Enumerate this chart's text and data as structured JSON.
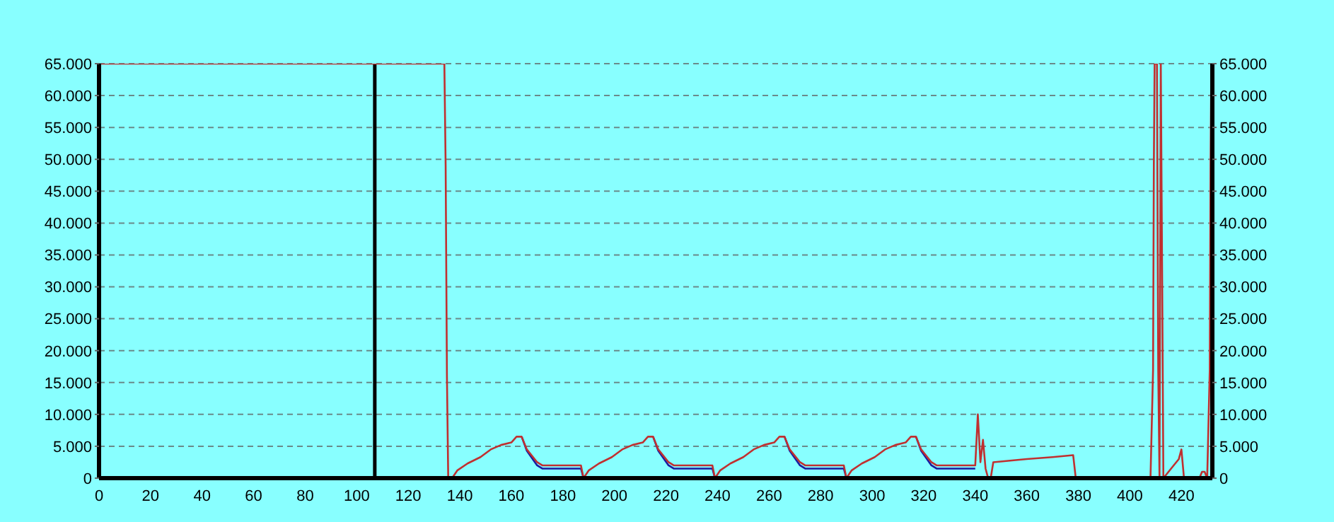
{
  "chart_data": {
    "type": "line",
    "xlim": [
      0,
      432
    ],
    "xticks": [
      0,
      20,
      40,
      60,
      80,
      100,
      120,
      140,
      160,
      180,
      200,
      220,
      240,
      260,
      280,
      300,
      320,
      340,
      360,
      380,
      400,
      420
    ],
    "ylim": [
      0,
      65000
    ],
    "yticks": [
      {
        "value": 0,
        "label": "0"
      },
      {
        "value": 5000,
        "label": "5.000"
      },
      {
        "value": 10000,
        "label": "10.000"
      },
      {
        "value": 15000,
        "label": "15.000"
      },
      {
        "value": 20000,
        "label": "20.000"
      },
      {
        "value": 25000,
        "label": "25.000"
      },
      {
        "value": 30000,
        "label": "30.000"
      },
      {
        "value": 35000,
        "label": "35.000"
      },
      {
        "value": 40000,
        "label": "40.000"
      },
      {
        "value": 45000,
        "label": "45.000"
      },
      {
        "value": 50000,
        "label": "50.000"
      },
      {
        "value": 55000,
        "label": "55.000"
      },
      {
        "value": 60000,
        "label": "60.000"
      },
      {
        "value": 65000,
        "label": "65.000"
      }
    ],
    "y2lim": [
      0,
      65000
    ],
    "y2ticks": [
      {
        "value": 0,
        "label": "0"
      },
      {
        "value": 5000,
        "label": "5.000"
      },
      {
        "value": 10000,
        "label": "10.000"
      },
      {
        "value": 15000,
        "label": "15.000"
      },
      {
        "value": 20000,
        "label": "20.000"
      },
      {
        "value": 25000,
        "label": "25.000"
      },
      {
        "value": 30000,
        "label": "30.000"
      },
      {
        "value": 35000,
        "label": "35.000"
      },
      {
        "value": 40000,
        "label": "40.000"
      },
      {
        "value": 45000,
        "label": "45.000"
      },
      {
        "value": 50000,
        "label": "50.000"
      },
      {
        "value": 55000,
        "label": "55.000"
      },
      {
        "value": 60000,
        "label": "60.000"
      },
      {
        "value": 65000,
        "label": "65.000"
      }
    ],
    "grid": "y",
    "ref_lines": [
      {
        "axis": "x",
        "value": 107,
        "color": "#000000"
      }
    ],
    "series": [
      {
        "color": "#1a1aa0",
        "x": [
          164,
          166,
          170,
          172,
          187,
          188,
          200,
          215,
          217,
          221,
          223,
          238,
          239,
          250,
          266,
          268,
          272,
          274,
          289,
          290,
          300,
          317,
          319,
          323,
          325,
          340
        ],
        "values": [
          6500,
          4300,
          2000,
          1500,
          1500,
          0,
          null,
          6500,
          4300,
          2000,
          1500,
          1500,
          0,
          null,
          6500,
          4300,
          2000,
          1500,
          1500,
          0,
          null,
          6500,
          4300,
          2000,
          1500,
          1500
        ]
      },
      {
        "color": "#c03030",
        "x": [
          0,
          134,
          134.5,
          135,
          135.5,
          137,
          139,
          143,
          148,
          152,
          156,
          160,
          162,
          164,
          166,
          170,
          172,
          187,
          188,
          190,
          194,
          199,
          203,
          207,
          211,
          213,
          215,
          217,
          221,
          223,
          238,
          239,
          241,
          245,
          250,
          254,
          258,
          262,
          264,
          266,
          268,
          272,
          274,
          289,
          290,
          292,
          296,
          301,
          305,
          309,
          313,
          315,
          317,
          319,
          323,
          325,
          340,
          341,
          342,
          343,
          344,
          345,
          346,
          347,
          360,
          370,
          378,
          379,
          408,
          409,
          409.3,
          409.6,
          410.5,
          411,
          411.5,
          412,
          412.5,
          413,
          416,
          418,
          419,
          420,
          421,
          427,
          428,
          429,
          430,
          431,
          431.3,
          431.6
        ],
        "values": [
          65000,
          65000,
          49000,
          16000,
          0,
          0,
          1200,
          2300,
          3300,
          4500,
          5200,
          5600,
          6500,
          6500,
          4500,
          2500,
          2000,
          2000,
          0,
          1200,
          2300,
          3300,
          4500,
          5200,
          5600,
          6500,
          6500,
          4500,
          2500,
          2000,
          2000,
          0,
          1200,
          2300,
          3300,
          4500,
          5200,
          5600,
          6500,
          6500,
          4500,
          2500,
          2000,
          2000,
          0,
          1200,
          2300,
          3300,
          4500,
          5200,
          5600,
          6500,
          6500,
          4500,
          2500,
          2000,
          2000,
          10000,
          2500,
          6000,
          1500,
          0,
          0,
          2500,
          3000,
          3300,
          3600,
          0,
          0,
          17000,
          49000,
          65000,
          65000,
          17000,
          0,
          65000,
          33000,
          0,
          1500,
          2500,
          3000,
          4500,
          0,
          0,
          1000,
          1000,
          0,
          17000,
          49000,
          65000
        ]
      }
    ]
  }
}
